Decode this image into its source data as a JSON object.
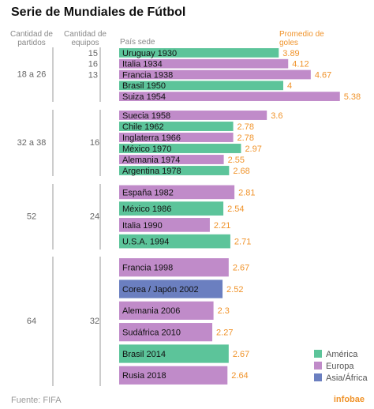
{
  "chart_data": {
    "type": "bar",
    "orientation": "horizontal",
    "title": "Serie de Mundiales de Fútbol",
    "headers": {
      "partidos": "Cantidad de partidos",
      "equipos": "Cantidad de equipos",
      "sede": "País sede",
      "goles": "Promedio de goles"
    },
    "groups": [
      {
        "partidos": "18 a 26",
        "rows": [
          {
            "sede": "Uruguay 1930",
            "goles": 3.89,
            "equipos": 15,
            "color": "#5cc49a"
          },
          {
            "sede": "Italia 1934",
            "goles": 4.12,
            "equipos": 16,
            "color": "#c08bc9"
          },
          {
            "sede": "Francia 1938",
            "goles": 4.67,
            "equipos": 13,
            "color": "#c08bc9"
          },
          {
            "sede": "Brasil 1950",
            "goles": 4,
            "color": "#5cc49a"
          },
          {
            "sede": "Suiza 1954",
            "goles": 5.38,
            "color": "#c08bc9"
          }
        ]
      },
      {
        "partidos": "32 a 38",
        "equipos": 16,
        "rows": [
          {
            "sede": "Suecia 1958",
            "goles": 3.6,
            "color": "#c08bc9"
          },
          {
            "sede": "Chile 1962",
            "goles": 2.78,
            "color": "#5cc49a"
          },
          {
            "sede": "Inglaterra 1966",
            "goles": 2.78,
            "color": "#c08bc9"
          },
          {
            "sede": "México 1970",
            "goles": 2.97,
            "color": "#5cc49a"
          },
          {
            "sede": "Alemania 1974",
            "goles": 2.55,
            "color": "#c08bc9"
          },
          {
            "sede": "Argentina 1978",
            "goles": 2.68,
            "color": "#5cc49a"
          }
        ]
      },
      {
        "partidos": "52",
        "equipos": 24,
        "rows": [
          {
            "sede": "España 1982",
            "goles": 2.81,
            "color": "#c08bc9"
          },
          {
            "sede": "México 1986",
            "goles": 2.54,
            "color": "#5cc49a"
          },
          {
            "sede": "Italia 1990",
            "goles": 2.21,
            "color": "#c08bc9"
          },
          {
            "sede": "U.S.A. 1994",
            "goles": 2.71,
            "color": "#5cc49a"
          }
        ]
      },
      {
        "partidos": "64",
        "equipos": 32,
        "rows": [
          {
            "sede": "Francia 1998",
            "goles": 2.67,
            "color": "#c08bc9"
          },
          {
            "sede": "Corea / Japón 2002",
            "goles": 2.52,
            "color": "#6b7fc0"
          },
          {
            "sede": "Alemania 2006",
            "goles": 2.3,
            "color": "#c08bc9"
          },
          {
            "sede": "Sudáfrica 2010",
            "goles": 2.27,
            "color": "#c08bc9"
          },
          {
            "sede": "Brasil 2014",
            "goles": 2.67,
            "color": "#5cc49a"
          },
          {
            "sede": "Rusia 2018",
            "goles": 2.64,
            "color": "#c08bc9"
          }
        ]
      }
    ],
    "legend": [
      {
        "name": "América",
        "color": "#5cc49a"
      },
      {
        "name": "Europa",
        "color": "#c08bc9"
      },
      {
        "name": "Asia/África",
        "color": "#6b7fc0"
      }
    ],
    "source": "Fuente: FIFA",
    "logo": "infobae"
  }
}
